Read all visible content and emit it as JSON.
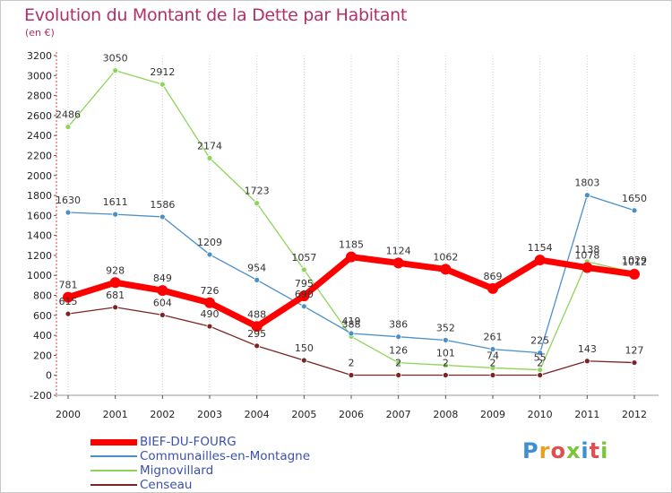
{
  "title": "Evolution du Montant de la Dette par Habitant",
  "unit": "(en €)",
  "logo": "Proxiti",
  "chart_data": {
    "type": "line",
    "x": [
      "2000",
      "2001",
      "2002",
      "2003",
      "2004",
      "2005",
      "2006",
      "2007",
      "2008",
      "2009",
      "2010",
      "2011",
      "2012"
    ],
    "ylim": [
      -200,
      3200
    ],
    "yticks": [
      -200,
      0,
      200,
      400,
      600,
      800,
      1000,
      1200,
      1400,
      1600,
      1800,
      2000,
      2200,
      2400,
      2600,
      2800,
      3000,
      3200
    ],
    "grid": "vertical dotted",
    "legend_position": "bottom-left",
    "series": [
      {
        "name": "BIEF-DU-FOURG",
        "color": "#ff0000",
        "values": [
          781,
          928,
          849,
          726,
          488,
          795,
          1185,
          1124,
          1062,
          869,
          1154,
          1078,
          1012
        ]
      },
      {
        "name": "Communailles-en-Montagne",
        "color": "#4a8fc8",
        "values": [
          1630,
          1611,
          1586,
          1209,
          954,
          690,
          419,
          386,
          352,
          261,
          225,
          1803,
          1650
        ]
      },
      {
        "name": "Mignovillard",
        "color": "#8fd45a",
        "values": [
          2486,
          3050,
          2912,
          2174,
          1723,
          1057,
          388,
          126,
          101,
          74,
          55,
          1138,
          1029
        ]
      },
      {
        "name": "Censeau",
        "color": "#7a2424",
        "values": [
          615,
          681,
          604,
          490,
          295,
          150,
          2,
          2,
          2,
          2,
          2,
          143,
          127
        ]
      }
    ]
  }
}
